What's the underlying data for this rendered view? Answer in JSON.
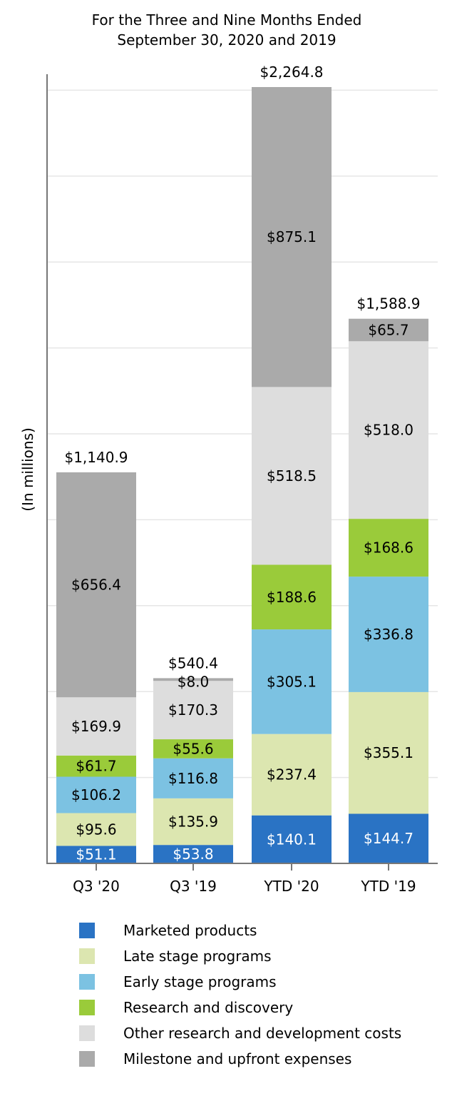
{
  "chart_data": {
    "type": "bar",
    "stacked": true,
    "title_line1": "For the Three and Nine Months Ended",
    "title_line2": "September 30, 2020 and 2019",
    "ylabel": "(In millions)",
    "xlabel": "",
    "categories": [
      "Q3 '20",
      "Q3 '19",
      "YTD '20",
      "YTD '19"
    ],
    "totals": [
      "$1,140.9",
      "$540.4",
      "$2,264.8",
      "$1,588.9"
    ],
    "total_values": [
      1140.9,
      540.4,
      2264.8,
      1588.9
    ],
    "ylim": [
      0,
      2264.8
    ],
    "grid": true,
    "legend_position": "bottom",
    "series": [
      {
        "name": "Marketed products",
        "color": "#2a73c4",
        "label_color": "#ffffff",
        "values": [
          51.1,
          53.8,
          140.1,
          144.7
        ],
        "labels": [
          "$51.1",
          "$53.8",
          "$140.1",
          "$144.7"
        ]
      },
      {
        "name": "Late stage programs",
        "color": "#dce6b0",
        "label_color": "#000000",
        "values": [
          95.6,
          135.9,
          237.4,
          355.1
        ],
        "labels": [
          "$95.6",
          "$135.9",
          "$237.4",
          "$355.1"
        ]
      },
      {
        "name": "Early stage programs",
        "color": "#7cc2e2",
        "label_color": "#000000",
        "values": [
          106.2,
          116.8,
          305.1,
          336.8
        ],
        "labels": [
          "$106.2",
          "$116.8",
          "$305.1",
          "$336.8"
        ]
      },
      {
        "name": "Research and discovery",
        "color": "#9acb3a",
        "label_color": "#000000",
        "values": [
          61.7,
          55.6,
          188.6,
          168.6
        ],
        "labels": [
          "$61.7",
          "$55.6",
          "$188.6",
          "$168.6"
        ]
      },
      {
        "name": "Other research and development costs",
        "color": "#dddddd",
        "label_color": "#000000",
        "values": [
          169.9,
          170.3,
          518.5,
          518.0
        ],
        "labels": [
          "$169.9",
          "$170.3",
          "$518.5",
          "$518.0"
        ]
      },
      {
        "name": "Milestone and upfront expenses",
        "color": "#aaaaaa",
        "label_color": "#000000",
        "values": [
          656.4,
          8.0,
          875.1,
          65.7
        ],
        "labels": [
          "$656.4",
          "$8.0",
          "$875.1",
          "$65.7"
        ]
      }
    ]
  }
}
